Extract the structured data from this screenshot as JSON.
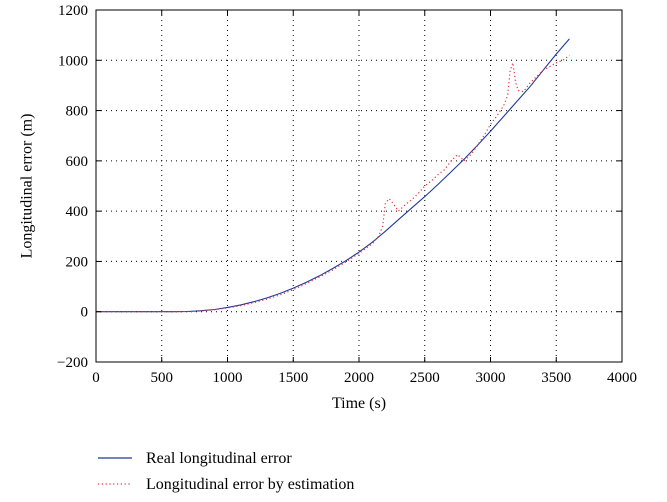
{
  "chart_data": {
    "type": "line",
    "title": "",
    "xlabel": "Time (s)",
    "ylabel": "Longitudinal error (m)",
    "xlim": [
      0,
      4000
    ],
    "ylim": [
      -200,
      1200
    ],
    "x_ticks": [
      0,
      500,
      1000,
      1500,
      2000,
      2500,
      3000,
      3500,
      4000
    ],
    "y_ticks": [
      -200,
      0,
      200,
      400,
      600,
      800,
      1000,
      1200
    ],
    "x_tick_labels": [
      "0",
      "500",
      "1000",
      "1500",
      "2000",
      "2500",
      "3000",
      "3500",
      "4000"
    ],
    "y_tick_labels": [
      "−200",
      "0",
      "200",
      "400",
      "600",
      "800",
      "1000",
      "1200"
    ],
    "grid": true,
    "legend_position": "below",
    "series": [
      {
        "name": "Real longitudinal error",
        "color": "#1f3a9a",
        "style": "solid",
        "x": [
          0,
          600,
          700,
          800,
          900,
          1000,
          1100,
          1200,
          1300,
          1400,
          1500,
          1600,
          1700,
          1800,
          1900,
          2000,
          2100,
          2200,
          2300,
          2400,
          2500,
          2600,
          2700,
          2800,
          2900,
          3000,
          3100,
          3200,
          3300,
          3400,
          3500,
          3600
        ],
        "y": [
          0,
          0,
          1,
          4,
          9,
          17,
          27,
          40,
          55,
          73,
          94,
          117,
          143,
          172,
          203,
          237,
          276,
          320,
          366,
          412,
          458,
          506,
          556,
          607,
          661,
          718,
          777,
          836,
          895,
          960,
          1025,
          1085
        ]
      },
      {
        "name": "Longitudinal error by estimation",
        "color": "#e8303a",
        "style": "dotted",
        "x": [
          0,
          600,
          700,
          800,
          900,
          1000,
          1100,
          1200,
          1300,
          1400,
          1500,
          1600,
          1700,
          1800,
          1900,
          2000,
          2100,
          2150,
          2180,
          2200,
          2230,
          2260,
          2300,
          2350,
          2400,
          2450,
          2500,
          2550,
          2600,
          2650,
          2700,
          2750,
          2800,
          2850,
          2900,
          2950,
          3000,
          3050,
          3100,
          3130,
          3150,
          3170,
          3190,
          3210,
          3250,
          3300,
          3350,
          3400,
          3450,
          3500,
          3550,
          3600
        ],
        "y": [
          0,
          0,
          1,
          3,
          8,
          15,
          24,
          36,
          50,
          67,
          88,
          112,
          138,
          166,
          198,
          232,
          270,
          300,
          340,
          430,
          450,
          430,
          400,
          425,
          445,
          470,
          500,
          520,
          545,
          565,
          600,
          625,
          600,
          625,
          660,
          700,
          745,
          780,
          820,
          860,
          960,
          990,
          915,
          880,
          875,
          910,
          935,
          960,
          975,
          990,
          1000,
          1020
        ]
      }
    ]
  }
}
